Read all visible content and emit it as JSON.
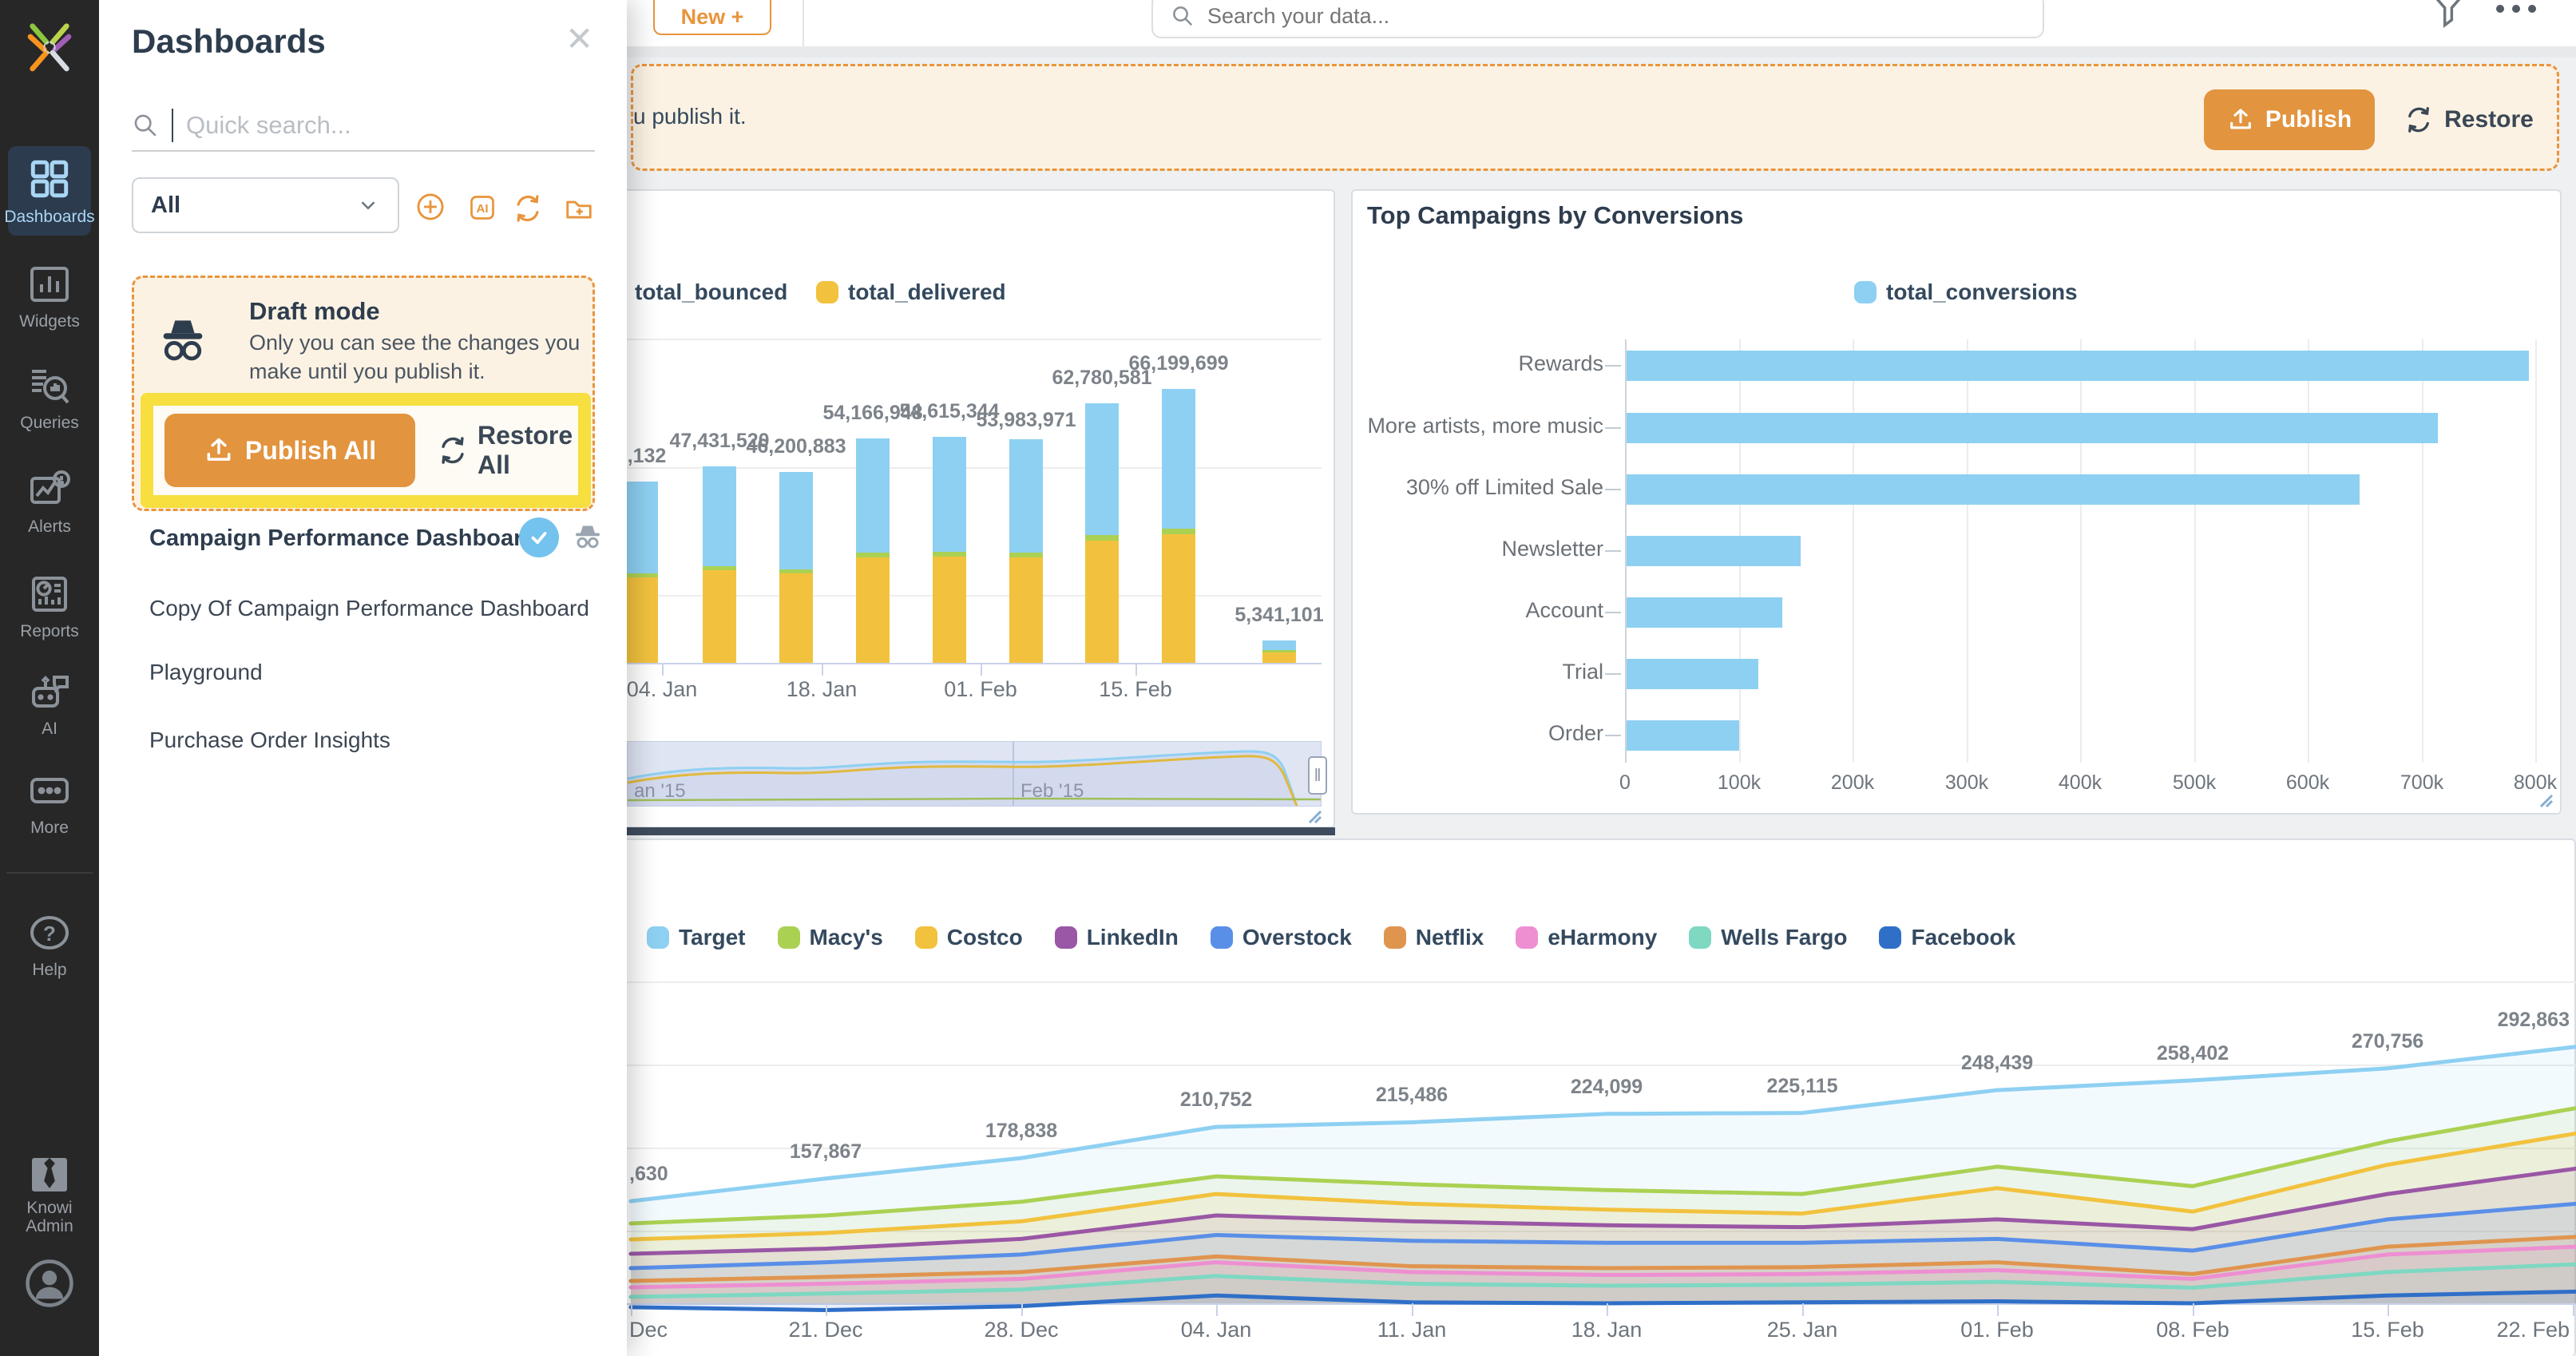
{
  "sidebar": {
    "items": [
      {
        "label": "Dashboards",
        "active": true
      },
      {
        "label": "Widgets"
      },
      {
        "label": "Queries"
      },
      {
        "label": "Alerts"
      },
      {
        "label": "Reports"
      },
      {
        "label": "AI"
      },
      {
        "label": "More"
      }
    ],
    "help_label": "Help",
    "admin_label": "Knowi Admin"
  },
  "panel": {
    "title": "Dashboards",
    "search_placeholder": "Quick search...",
    "filter_value": "All",
    "draft": {
      "title": "Draft mode",
      "description_line1": "Only you can see the changes you",
      "description_line2": "make until you publish it.",
      "publish_all_label": "Publish All",
      "restore_all_label": "Restore All"
    },
    "dashboards": [
      {
        "label": "Campaign Performance Dashboard",
        "active": true
      },
      {
        "label": "Copy Of Campaign Performance Dashboard",
        "active": false
      },
      {
        "label": "Playground",
        "active": false
      },
      {
        "label": "Purchase Order Insights",
        "active": false
      }
    ]
  },
  "topbar": {
    "new_button_label": "New +",
    "search_placeholder": "Search your data..."
  },
  "banner": {
    "visible_text": "u publish it.",
    "publish_label": "Publish",
    "restore_label": "Restore"
  },
  "colors": {
    "accent_orange": "#E8943C",
    "navy_text": "#34495E",
    "banner_bg": "#FCF2E3",
    "highlight_yellow": "#F6DF3E",
    "sidebar_bg": "#272727",
    "sidebar_active_bg": "#2C3B4D",
    "light_blue": "#8ED0F2",
    "yellow": "#F2C23E",
    "green": "#ABD153"
  },
  "chart_data": [
    {
      "type": "bar",
      "subtype": "stacked-columns-time",
      "legend": [
        "total_bounced",
        "total_delivered"
      ],
      "series_colors": {
        "total_bounced": "#8ED0F2",
        "total_delivered": "#F2C23E",
        "minor_band": "#ABD153"
      },
      "columns": [
        {
          "label": "0,132",
          "value": 43800132
        },
        {
          "label": "47,431,520",
          "value": 47431520
        },
        {
          "label": "46,200,883",
          "value": 46200883
        },
        {
          "label": "54,166,948",
          "value": 54166948
        },
        {
          "label": "54,615,344",
          "value": 54615344
        },
        {
          "label": "53,983,971",
          "value": 53983971
        },
        {
          "label": "62,780,581",
          "value": 62780581
        },
        {
          "label": "66,199,699",
          "value": 66199699
        },
        {
          "label": "5,341,101",
          "value": 5341101
        }
      ],
      "segment_fractions": {
        "total_delivered": 0.47,
        "minor_band": 0.02,
        "total_bounced": 0.51
      },
      "x_ticks": [
        "04. Jan",
        "18. Jan",
        "01. Feb",
        "15. Feb"
      ],
      "navigator_labels": [
        "an '15",
        "Feb '15"
      ],
      "ylim": [
        0,
        70000000
      ]
    },
    {
      "type": "bar",
      "subtype": "horizontal",
      "title": "Top Campaigns by Conversions",
      "legend": [
        "total_conversions"
      ],
      "color": "#8ED0F2",
      "categories": [
        "Rewards",
        "More artists, more music",
        "30% off Limited Sale",
        "Newsletter",
        "Account",
        "Trial",
        "Order"
      ],
      "values": [
        793000,
        713000,
        644000,
        153000,
        137000,
        116000,
        99000
      ],
      "x_ticks": [
        "0",
        "100k",
        "200k",
        "300k",
        "400k",
        "500k",
        "600k",
        "700k",
        "800k"
      ],
      "xlim": [
        0,
        850000
      ],
      "grid": "vertical"
    },
    {
      "type": "area",
      "subtype": "multi-series-lines",
      "x_ticks": [
        "Dec",
        "21. Dec",
        "28. Dec",
        "04. Jan",
        "11. Jan",
        "18. Jan",
        "25. Jan",
        "01. Feb",
        "08. Feb",
        "15. Feb",
        "22. Feb"
      ],
      "point_labels": [
        ",630",
        "157,867",
        "178,838",
        "210,752",
        "215,486",
        "224,099",
        "225,115",
        "248,439",
        "258,402",
        "270,756",
        "292,863"
      ],
      "series": [
        {
          "name": "Target",
          "color": "#8ED0F2",
          "values": [
            134630,
            157867,
            178838,
            210752,
            215486,
            224099,
            225115,
            248439,
            258402,
            270756,
            292863
          ]
        },
        {
          "name": "Macy's",
          "color": "#ABD153",
          "values": [
            111800,
            120000,
            134000,
            160000,
            152000,
            146000,
            142000,
            170000,
            150000,
            196000,
            230000
          ]
        },
        {
          "name": "Costco",
          "color": "#F2C23E",
          "values": [
            95500,
            102000,
            114000,
            142000,
            132000,
            126000,
            122000,
            148000,
            124000,
            172000,
            204000
          ]
        },
        {
          "name": "LinkedIn",
          "color": "#9A57A5",
          "values": [
            80700,
            86000,
            96000,
            120000,
            114000,
            110000,
            108000,
            116000,
            106000,
            142000,
            168000
          ]
        },
        {
          "name": "Overstock",
          "color": "#5A8FE8",
          "values": [
            66000,
            72000,
            80000,
            100000,
            94000,
            92000,
            92000,
            96000,
            84000,
            116000,
            132000
          ]
        },
        {
          "name": "Netflix",
          "color": "#E0954F",
          "values": [
            52900,
            57000,
            62000,
            78000,
            68000,
            66000,
            67000,
            72000,
            60000,
            88000,
            98000
          ]
        },
        {
          "name": "eHarmony",
          "color": "#EE8FD2",
          "values": [
            46400,
            50000,
            55000,
            72000,
            62000,
            59000,
            60000,
            64000,
            55000,
            80000,
            88000
          ]
        },
        {
          "name": "Wells Fargo",
          "color": "#7ED8C2",
          "values": [
            36500,
            40000,
            44000,
            58000,
            50000,
            48000,
            49000,
            52000,
            46000,
            62000,
            70000
          ]
        },
        {
          "name": "Facebook",
          "color": "#2F6FC8",
          "values": [
            26000,
            23000,
            27000,
            38000,
            31000,
            30000,
            31000,
            32000,
            30000,
            38000,
            42000
          ]
        }
      ]
    }
  ]
}
